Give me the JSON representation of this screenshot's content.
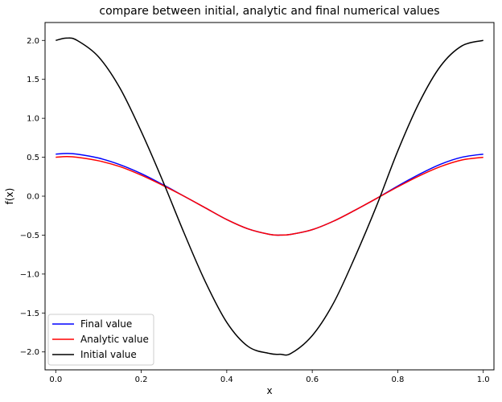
{
  "chart_data": {
    "type": "line",
    "title": "compare between initial, analytic and final numerical values",
    "xlabel": "x",
    "ylabel": "f(x)",
    "xlim": [
      -0.025,
      1.025
    ],
    "ylim": [
      -2.23,
      2.23
    ],
    "xticks": [
      0.0,
      0.2,
      0.4,
      0.6,
      0.8,
      1.0
    ],
    "xtick_labels": [
      "0.0",
      "0.2",
      "0.4",
      "0.6",
      "0.8",
      "1.0"
    ],
    "yticks": [
      2.0,
      1.5,
      1.0,
      0.5,
      0.0,
      -0.5,
      -1.0,
      -1.5,
      -2.0
    ],
    "ytick_labels": [
      "2.0",
      "1.5",
      "1.0",
      "0.5",
      "0.0",
      "−0.5",
      "−1.0",
      "−1.5",
      "−2.0"
    ],
    "grid": false,
    "legend_position": "lower-left",
    "series": [
      {
        "name": "Final value",
        "color": "#0000ff",
        "x": [
          0.0,
          0.025,
          0.05,
          0.1,
          0.15,
          0.2,
          0.25,
          0.3,
          0.35,
          0.4,
          0.45,
          0.5,
          0.525,
          0.55,
          0.6,
          0.65,
          0.7,
          0.75,
          0.8,
          0.85,
          0.9,
          0.95,
          1.0
        ],
        "y": [
          0.54,
          0.548,
          0.54,
          0.49,
          0.405,
          0.29,
          0.15,
          0.0,
          -0.15,
          -0.3,
          -0.42,
          -0.49,
          -0.5,
          -0.49,
          -0.43,
          -0.32,
          -0.18,
          -0.03,
          0.13,
          0.28,
          0.41,
          0.5,
          0.54
        ]
      },
      {
        "name": "Analytic value",
        "color": "#ff0000",
        "x": [
          0.0,
          0.025,
          0.05,
          0.1,
          0.15,
          0.2,
          0.25,
          0.3,
          0.35,
          0.4,
          0.45,
          0.5,
          0.525,
          0.55,
          0.6,
          0.65,
          0.7,
          0.75,
          0.8,
          0.85,
          0.9,
          0.95,
          1.0
        ],
        "y": [
          0.5,
          0.508,
          0.5,
          0.455,
          0.38,
          0.27,
          0.14,
          0.0,
          -0.15,
          -0.3,
          -0.42,
          -0.49,
          -0.5,
          -0.49,
          -0.43,
          -0.32,
          -0.18,
          -0.03,
          0.12,
          0.26,
          0.38,
          0.465,
          0.5
        ]
      },
      {
        "name": "Initial value",
        "color": "#000000",
        "x": [
          0.0,
          0.025,
          0.05,
          0.1,
          0.15,
          0.2,
          0.25,
          0.3,
          0.35,
          0.4,
          0.45,
          0.5,
          0.525,
          0.55,
          0.6,
          0.65,
          0.7,
          0.75,
          0.8,
          0.85,
          0.9,
          0.95,
          1.0
        ],
        "y": [
          2.0,
          2.03,
          2.0,
          1.79,
          1.39,
          0.83,
          0.2,
          -0.47,
          -1.1,
          -1.62,
          -1.93,
          -2.02,
          -2.03,
          -2.02,
          -1.79,
          -1.37,
          -0.78,
          -0.13,
          0.58,
          1.2,
          1.67,
          1.93,
          2.0
        ]
      }
    ]
  }
}
